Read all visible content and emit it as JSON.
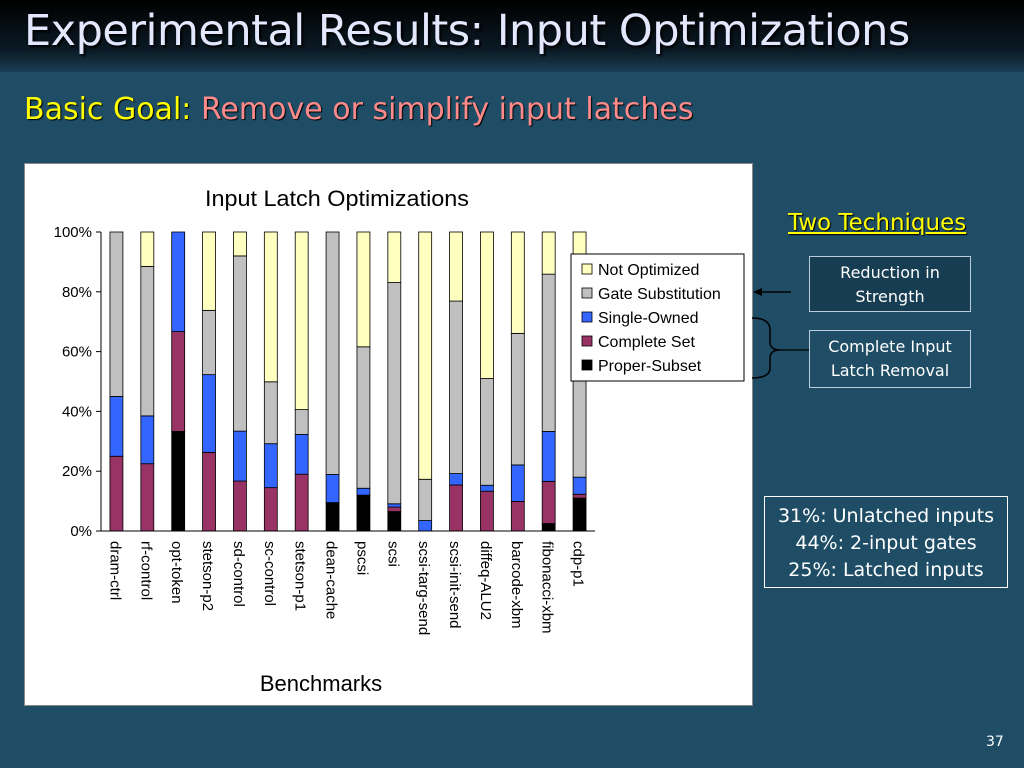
{
  "slide": {
    "title": "Experimental Results: Input Optimizations",
    "subtitle_label": "Basic Goal:",
    "subtitle_text": "Remove or simplify input latches",
    "page_number": "37",
    "colors": {
      "background": "#1f4d66",
      "title_text": "#e4e8ff",
      "subtitle_label": "#ffff00",
      "subtitle_text": "#ff8a8a",
      "heading": "#ffff00"
    }
  },
  "techniques": {
    "heading": "Two Techniques",
    "items": [
      "Reduction in Strength",
      "Complete Input Latch Removal"
    ]
  },
  "stats": {
    "lines": [
      "31%: Unlatched inputs",
      "44%: 2-input gates",
      "25%: Latched inputs"
    ]
  },
  "chart_data": {
    "type": "bar",
    "stacked": true,
    "percent_stacked": true,
    "title": "Input Latch Optimizations",
    "xlabel": "Benchmarks",
    "ylabel": "",
    "ylim": [
      0,
      100
    ],
    "y_ticks": [
      "0%",
      "20%",
      "40%",
      "60%",
      "80%",
      "100%"
    ],
    "grid": false,
    "legend_position": "right",
    "categories": [
      "dram-ctrl",
      "rf-control",
      "opt-token",
      "stetson-p2",
      "sd-control",
      "sc-control",
      "stetson-p1",
      "dean-cache",
      "pscsi",
      "scsi",
      "scsi-targ-send",
      "scsi-init-send",
      "diffeq-ALU2",
      "barcode-xbm",
      "fibonacci-xbm",
      "cdp-p1"
    ],
    "series": [
      {
        "name": "Proper-Subset",
        "color": "#000000",
        "values": [
          0,
          0,
          33.3,
          0,
          0,
          0,
          0,
          9.5,
          12,
          6.5,
          0,
          0,
          0,
          0,
          2.5,
          11
        ]
      },
      {
        "name": "Complete Set",
        "color": "#993366",
        "values": [
          25,
          22.5,
          33.4,
          26.3,
          16.7,
          14.5,
          19,
          0,
          0,
          1.5,
          0,
          15.4,
          13.3,
          9.9,
          14.1,
          1.3
        ]
      },
      {
        "name": "Single-Owned",
        "color": "#3366ff",
        "values": [
          20,
          16,
          33.3,
          26,
          16.7,
          14.7,
          13.3,
          9.4,
          2.3,
          1.1,
          3.5,
          3.8,
          2,
          12.2,
          16.7,
          5.7
        ]
      },
      {
        "name": "Gate Substitution",
        "color": "#c0c0c0",
        "values": [
          55,
          50,
          0,
          21.5,
          58.6,
          20.7,
          8.3,
          81.1,
          47.3,
          74,
          13.8,
          57.7,
          35.7,
          44,
          52.6,
          33.3
        ]
      },
      {
        "name": "Not Optimized",
        "color": "#ffffc0",
        "values": [
          0,
          11.5,
          0,
          26.2,
          8,
          50.1,
          59.4,
          0,
          38.4,
          16.9,
          82.7,
          23.1,
          49,
          33.9,
          14.1,
          48.7
        ]
      }
    ]
  }
}
